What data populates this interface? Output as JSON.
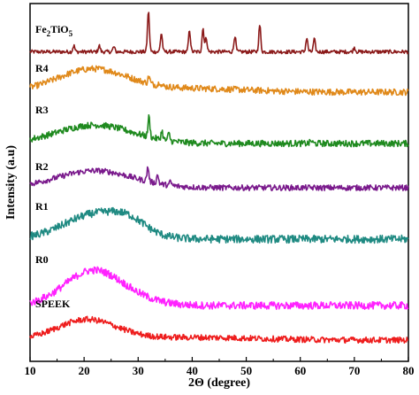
{
  "chart_data": {
    "type": "line",
    "title": "",
    "xlabel": "2Θ (degree)",
    "ylabel": "Intensity (a.u)",
    "xlim": [
      10,
      80
    ],
    "x_ticks": [
      "10",
      "20",
      "30",
      "40",
      "50",
      "60",
      "70",
      "80"
    ],
    "y_ticks": [],
    "grid": false,
    "legend": "none",
    "series": [
      {
        "name": "Fe2TiO5",
        "label_main": "Fe",
        "label_sub1": "2",
        "label_mid": "TiO",
        "label_sub2": "5",
        "color": "#8b1a1a",
        "baseline": 0.5,
        "hump": [],
        "peaks": [
          [
            18.1,
            1.0
          ],
          [
            22.8,
            1.0
          ],
          [
            25.5,
            0.8
          ],
          [
            31.9,
            6.5
          ],
          [
            34.3,
            3.0
          ],
          [
            39.5,
            3.5
          ],
          [
            42.0,
            3.8
          ],
          [
            42.6,
            2.2
          ],
          [
            47.9,
            2.6
          ],
          [
            52.5,
            4.3
          ],
          [
            61.2,
            2.2
          ],
          [
            62.6,
            2.0
          ],
          [
            70.0,
            0.7
          ]
        ],
        "noise": 0.3
      },
      {
        "name": "R4",
        "color": "#e0891a",
        "baseline": 0.0,
        "hump": [
          [
            21.5,
            3.2,
            6.5
          ],
          [
            40.0,
            0.5,
            10.0
          ]
        ],
        "peaks": [
          [
            32.0,
            1.0
          ],
          [
            34.0,
            0.6
          ]
        ],
        "noise": 0.45
      },
      {
        "name": "R3",
        "color": "#1f8a1f",
        "baseline": 0.0,
        "hump": [
          [
            22.0,
            2.6,
            7.0
          ]
        ],
        "peaks": [
          [
            32.0,
            2.8
          ],
          [
            34.4,
            1.2
          ],
          [
            35.7,
            1.0
          ],
          [
            62.0,
            0.4
          ]
        ],
        "noise": 0.45
      },
      {
        "name": "R2",
        "color": "#7a1a8c",
        "baseline": 0.0,
        "hump": [
          [
            22.0,
            2.4,
            7.0
          ]
        ],
        "peaks": [
          [
            31.8,
            2.0
          ],
          [
            33.6,
            1.2
          ],
          [
            36.0,
            0.5
          ]
        ],
        "noise": 0.4
      },
      {
        "name": "R1",
        "color": "#1f8a82",
        "baseline": 0.0,
        "hump": [
          [
            22.5,
            3.6,
            6.0
          ],
          [
            28.5,
            1.2,
            3.0
          ]
        ],
        "peaks": [],
        "noise": 0.55
      },
      {
        "name": "R0",
        "color": "#ff22ff",
        "baseline": 0.0,
        "hump": [
          [
            21.5,
            4.5,
            5.2
          ],
          [
            29.0,
            0.6,
            5.0
          ]
        ],
        "peaks": [],
        "noise": 0.5
      },
      {
        "name": "SPEEK",
        "color": "#ee1d1d",
        "baseline": 0.0,
        "hump": [
          [
            20.5,
            3.0,
            5.5
          ],
          [
            40.0,
            0.4,
            12.0
          ]
        ],
        "peaks": [],
        "noise": 0.45
      }
    ]
  }
}
